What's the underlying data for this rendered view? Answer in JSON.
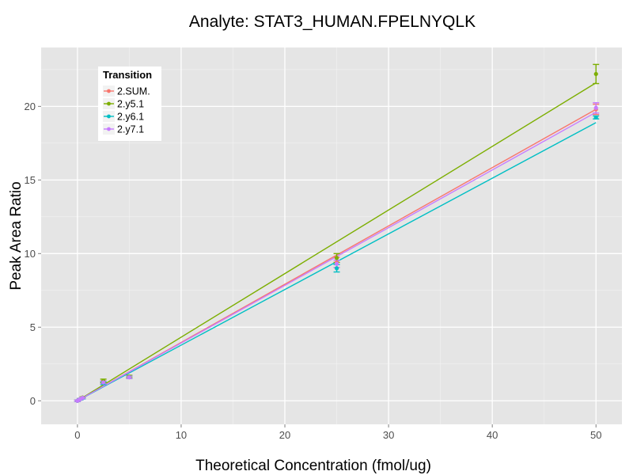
{
  "chart_data": {
    "type": "line",
    "title": "Analyte: STAT3_HUMAN.FPELNYQLK",
    "xlabel": "Theoretical Concentration (fmol/ug)",
    "ylabel": "Peak Area Ratio",
    "xlim": [
      -3.5,
      52.5
    ],
    "ylim": [
      -1.6,
      24.0
    ],
    "x_ticks": [
      0,
      10,
      20,
      30,
      40,
      50
    ],
    "y_ticks": [
      0,
      5,
      10,
      15,
      20
    ],
    "grid": true,
    "legend": {
      "title": "Transition",
      "position": "top-left"
    },
    "series": [
      {
        "name": "2.SUM.",
        "color": "#F8766D",
        "fit": {
          "x0": 0,
          "y0": 0.0,
          "x1": 50,
          "y1": 19.8
        },
        "points": [
          {
            "x": 0,
            "y": 0.0,
            "err": 0.05
          },
          {
            "x": 0.25,
            "y": 0.1,
            "err": 0.05
          },
          {
            "x": 0.5,
            "y": 0.2,
            "err": 0.05
          },
          {
            "x": 2.5,
            "y": 1.25,
            "err": 0.1
          },
          {
            "x": 5,
            "y": 1.6,
            "err": 0.08
          },
          {
            "x": 25,
            "y": 9.4,
            "err": 0.35
          },
          {
            "x": 50,
            "y": 19.8,
            "err": 0.35
          }
        ]
      },
      {
        "name": "2.y5.1",
        "color": "#7CAE00",
        "fit": {
          "x0": 0,
          "y0": 0.0,
          "x1": 50,
          "y1": 21.6
        },
        "points": [
          {
            "x": 0,
            "y": 0.0,
            "err": 0.05
          },
          {
            "x": 0.25,
            "y": 0.1,
            "err": 0.05
          },
          {
            "x": 0.5,
            "y": 0.22,
            "err": 0.05
          },
          {
            "x": 2.5,
            "y": 1.35,
            "err": 0.12
          },
          {
            "x": 5,
            "y": 1.65,
            "err": 0.08
          },
          {
            "x": 25,
            "y": 9.7,
            "err": 0.3
          },
          {
            "x": 50,
            "y": 22.2,
            "err": 0.65
          }
        ]
      },
      {
        "name": "2.y6.1",
        "color": "#00BFC4",
        "fit": {
          "x0": 0,
          "y0": 0.0,
          "x1": 50,
          "y1": 18.9
        },
        "points": [
          {
            "x": 0,
            "y": 0.0,
            "err": 0.05
          },
          {
            "x": 0.25,
            "y": 0.1,
            "err": 0.05
          },
          {
            "x": 0.5,
            "y": 0.18,
            "err": 0.05
          },
          {
            "x": 2.5,
            "y": 1.2,
            "err": 0.1
          },
          {
            "x": 5,
            "y": 1.6,
            "err": 0.08
          },
          {
            "x": 25,
            "y": 9.0,
            "err": 0.25
          },
          {
            "x": 50,
            "y": 19.25,
            "err": 0.1
          }
        ]
      },
      {
        "name": "2.y7.1",
        "color": "#C77CFF",
        "fit": {
          "x0": 0,
          "y0": 0.0,
          "x1": 50,
          "y1": 19.6
        },
        "points": [
          {
            "x": 0,
            "y": 0.0,
            "err": 0.05
          },
          {
            "x": 0.25,
            "y": 0.1,
            "err": 0.05
          },
          {
            "x": 0.5,
            "y": 0.2,
            "err": 0.05
          },
          {
            "x": 2.5,
            "y": 1.25,
            "err": 0.1
          },
          {
            "x": 5,
            "y": 1.6,
            "err": 0.08
          },
          {
            "x": 25,
            "y": 9.3,
            "err": 0.25
          },
          {
            "x": 50,
            "y": 19.9,
            "err": 0.35
          }
        ]
      }
    ]
  }
}
